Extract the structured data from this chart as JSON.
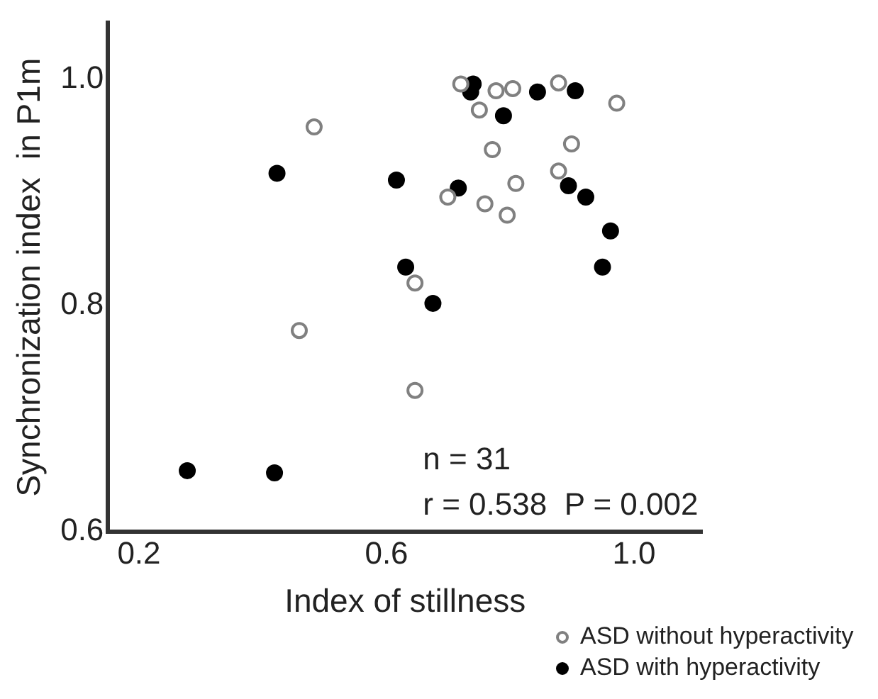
{
  "chart_data": {
    "type": "scatter",
    "xlabel": "Index of stillness",
    "ylabel": "Synchronization index  in P1m",
    "xlim": [
      0.15,
      1.11
    ],
    "xticks": [
      0.2,
      0.6,
      {
        "value": 1,
        "label": "1.0"
      }
    ],
    "ylim": [
      0.6,
      1.05
    ],
    "yticks": [
      0.6,
      0.8,
      {
        "value": 1,
        "label": "1.0"
      }
    ],
    "grid": false,
    "legend": "bottom right",
    "marker": "circle",
    "annotations": [
      "n = 31",
      "r = 0.538  P = 0.002"
    ],
    "series": [
      {
        "name": "ASD without hyperactivity",
        "color": "#808080",
        "x": [
          0.72,
          0.777,
          0.804,
          0.878,
          0.972,
          0.75,
          0.483,
          0.771,
          0.899,
          0.878,
          0.809,
          0.699,
          0.759,
          0.795,
          0.646,
          0.459,
          0.646
        ],
        "values": [
          0.996,
          0.99,
          0.992,
          0.997,
          0.979,
          0.973,
          0.958,
          0.938,
          0.943,
          0.919,
          0.908,
          0.896,
          0.89,
          0.88,
          0.82,
          0.778,
          0.725
        ]
      },
      {
        "name": "ASD with hyperactivity",
        "color": "#000000",
        "x": [
          0.74,
          0.736,
          0.844,
          0.905,
          0.789,
          0.423,
          0.616,
          0.716,
          0.894,
          0.922,
          0.962,
          0.631,
          0.949,
          0.675,
          0.278,
          0.419
        ],
        "values": [
          0.996,
          0.989,
          0.989,
          0.99,
          0.968,
          0.917,
          0.911,
          0.904,
          0.906,
          0.896,
          0.866,
          0.834,
          0.834,
          0.802,
          0.654,
          0.652
        ]
      }
    ]
  }
}
